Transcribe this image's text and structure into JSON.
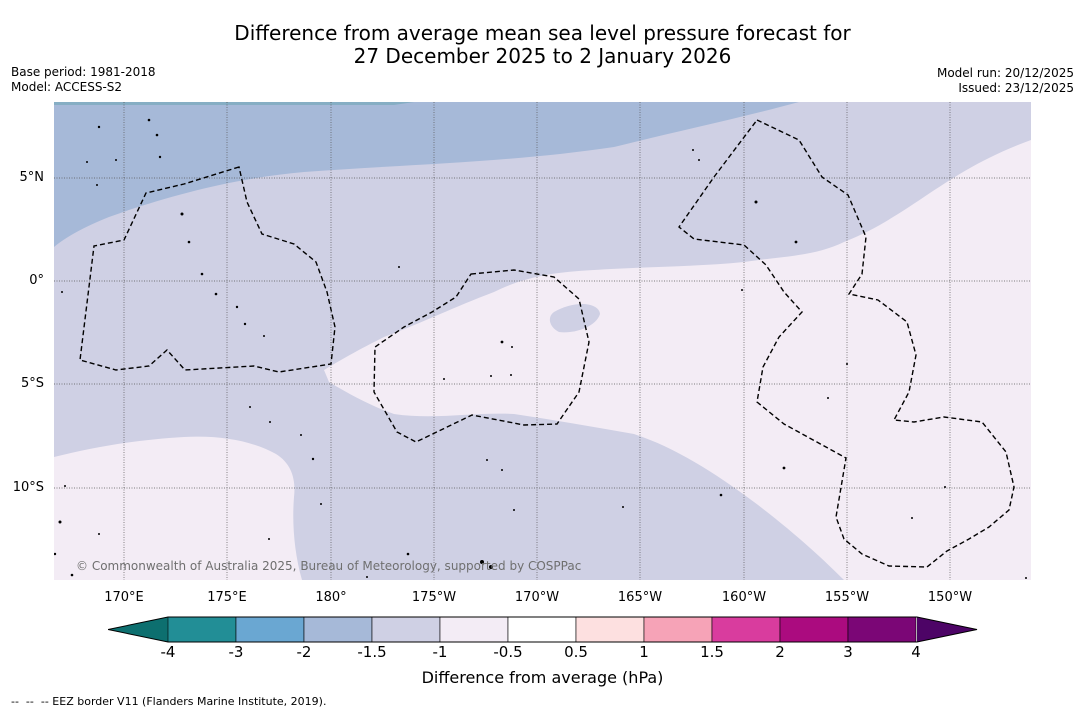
{
  "title": {
    "line1": "Difference from average mean sea level pressure forecast for",
    "line2": "27 December 2025 to 2 January 2026"
  },
  "meta": {
    "base_period": "Base period: 1981-2018",
    "model": "Model: ACCESS-S2",
    "model_run": "Model run: 20/12/2025",
    "issued": "Issued: 23/12/2025"
  },
  "map": {
    "lat_labels": [
      "5°N",
      "0°",
      "5°S",
      "10°S"
    ],
    "lon_labels": [
      "170°E",
      "175°E",
      "180°",
      "175°W",
      "170°W",
      "165°W",
      "160°W",
      "155°W",
      "150°W"
    ],
    "credit": "© Commonwealth of Australia 2025, Bureau of Meteorology, supported by COSPPac",
    "eez_border_style": "dashed"
  },
  "colorbar": {
    "title": "Difference from average (hPa)",
    "ticks": [
      "-4",
      "-3",
      "-2",
      "-1.5",
      "-1",
      "-0.5",
      "0.5",
      "1",
      "1.5",
      "2",
      "3",
      "4"
    ],
    "colors": [
      "#0d6f6f",
      "#228e96",
      "#6aa7d2",
      "#a6b9d8",
      "#cfd0e4",
      "#f3ecf5",
      "#ffffff",
      "#fde0e0",
      "#f6a3b7",
      "#d93c9e",
      "#ab0b7f",
      "#7b0676",
      "#4d0466"
    ]
  },
  "footnote": "--  --  -- EEZ border V11 (Flanders Marine Institute, 2019)."
}
